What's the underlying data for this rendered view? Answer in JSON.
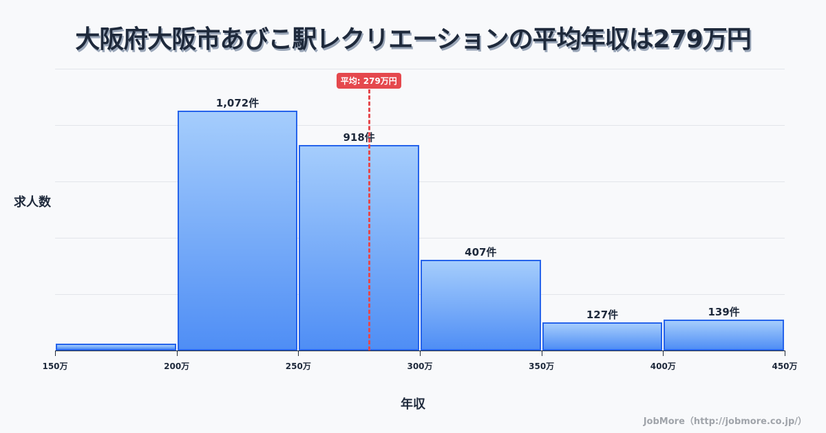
{
  "title": "大阪府大阪市あびこ駅レクリエーションの平均年収は279万円",
  "ylabel": "求人数",
  "xlabel": "年収",
  "footer": "JobMore（http://jobmore.co.jp/）",
  "mean_badge": "平均: 279万円",
  "colors": {
    "bar_border": "#2563eb",
    "bar_top": "#a5cdfc",
    "bar_bottom": "#4f8ef5",
    "mean": "#e5484d"
  },
  "chart_data": {
    "type": "bar",
    "title": "大阪府大阪市あびこ駅レクリエーションの平均年収は279万円",
    "xlabel": "年収",
    "ylabel": "求人数",
    "categories": [
      "150-200万",
      "200-250万",
      "250-300万",
      "300-350万",
      "350-400万",
      "400-450万"
    ],
    "values": [
      31,
      1072,
      918,
      407,
      127,
      139
    ],
    "value_labels": [
      "",
      "1,072件",
      "918件",
      "407件",
      "127件",
      "139件"
    ],
    "x_ticks": [
      "150万",
      "200万",
      "250万",
      "300万",
      "350万",
      "400万",
      "450万"
    ],
    "x_range": [
      150,
      450
    ],
    "ylim": [
      0,
      1260
    ],
    "grid": true,
    "mean": 279,
    "mean_label": "平均: 279万円"
  }
}
